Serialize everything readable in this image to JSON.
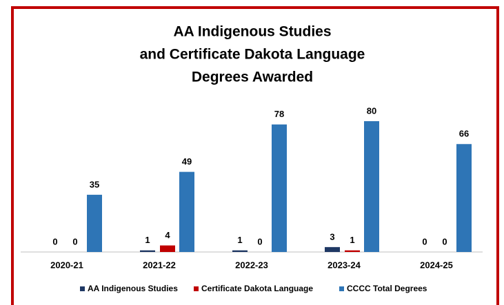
{
  "chart_data": {
    "type": "bar",
    "title_lines": [
      "AA Indigenous Studies",
      "and Certificate Dakota Language",
      "Degrees Awarded"
    ],
    "categories": [
      "2020-21",
      "2021-22",
      "2022-23",
      "2023-24",
      "2024-25"
    ],
    "series": [
      {
        "name": "AA Indigenous Studies",
        "color": "#1f3864",
        "values": [
          0,
          1,
          1,
          3,
          0
        ]
      },
      {
        "name": "Certificate Dakota Language",
        "color": "#c00000",
        "values": [
          0,
          4,
          0,
          1,
          0
        ]
      },
      {
        "name": "CCCC Total Degrees",
        "color": "#2e75b6",
        "values": [
          35,
          49,
          78,
          80,
          66
        ]
      }
    ],
    "legend": "bottom",
    "data_labels": true
  }
}
